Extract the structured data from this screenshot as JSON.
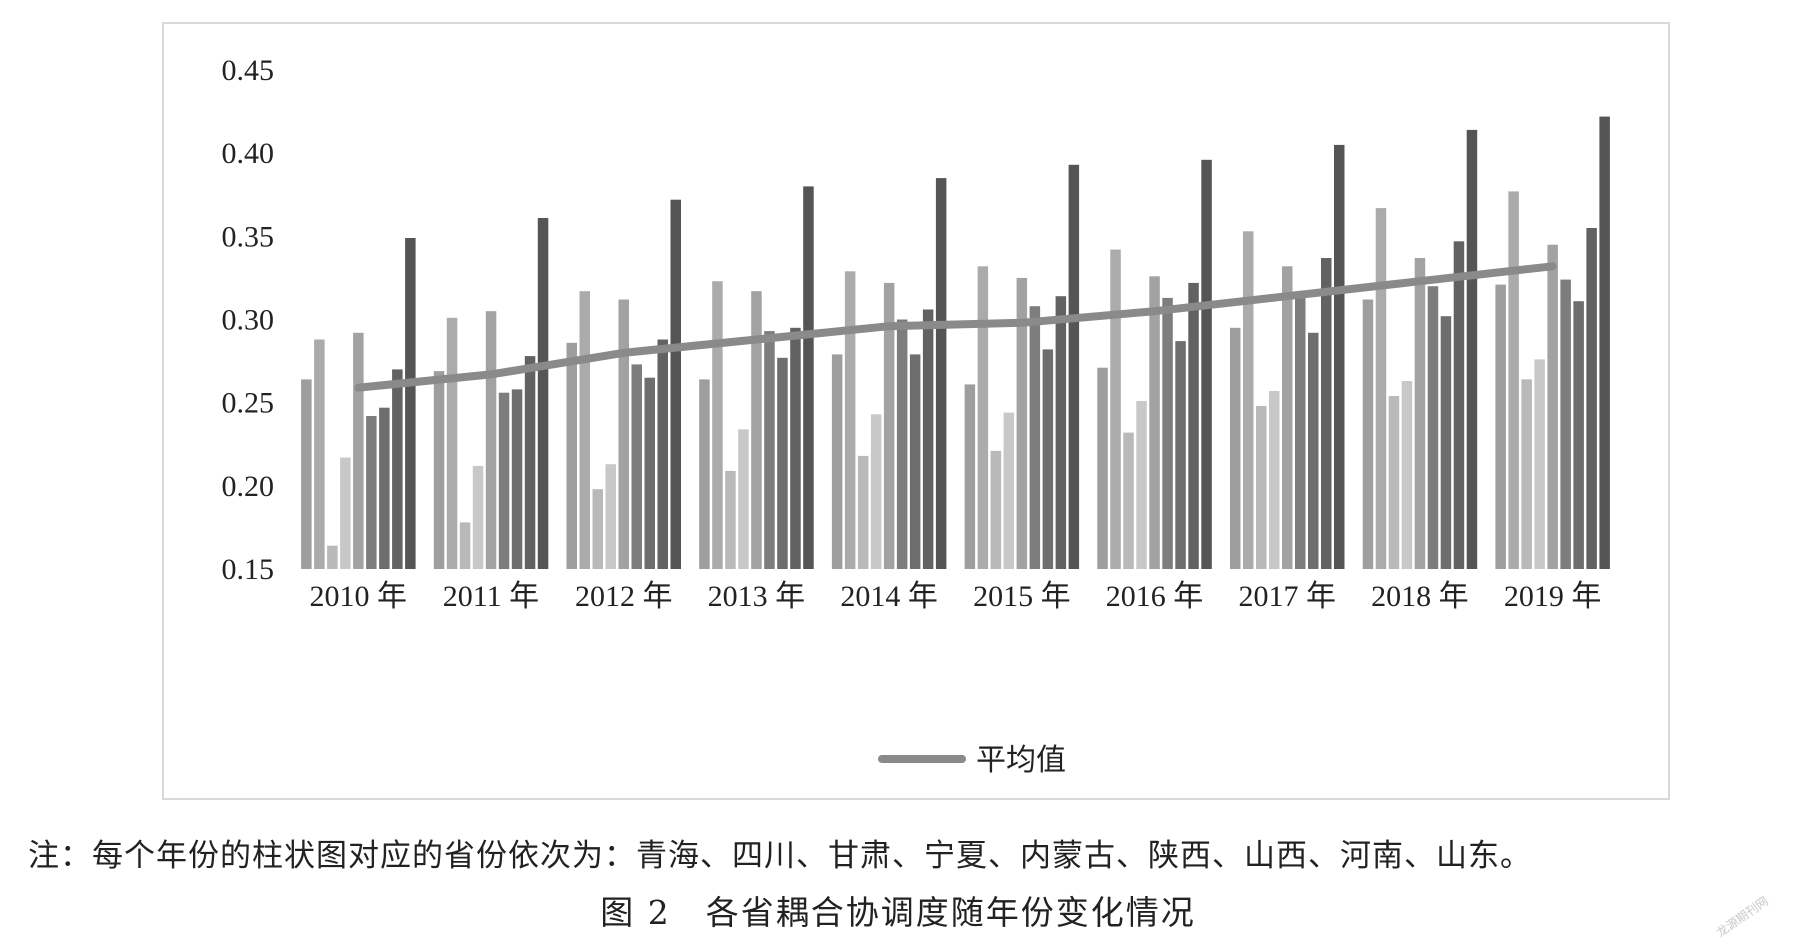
{
  "chart_data": {
    "type": "bar",
    "title": "",
    "categories": [
      "2010 年",
      "2011 年",
      "2012 年",
      "2013 年",
      "2014 年",
      "2015 年",
      "2016 年",
      "2017 年",
      "2018 年",
      "2019 年"
    ],
    "ylim": [
      0.15,
      0.45
    ],
    "yticks": [
      "0.15",
      "0.20",
      "0.25",
      "0.30",
      "0.35",
      "0.40",
      "0.45"
    ],
    "series": [
      {
        "values": [
          0.264,
          0.269,
          0.286,
          0.264,
          0.279,
          0.261,
          0.271,
          0.295,
          0.312,
          0.321
        ],
        "color": "#9e9e9e"
      },
      {
        "values": [
          0.288,
          0.301,
          0.317,
          0.323,
          0.329,
          0.332,
          0.342,
          0.353,
          0.367,
          0.377
        ],
        "color": "#ababab"
      },
      {
        "values": [
          0.164,
          0.178,
          0.198,
          0.209,
          0.218,
          0.221,
          0.232,
          0.248,
          0.254,
          0.264
        ],
        "color": "#b9b9b9"
      },
      {
        "values": [
          0.217,
          0.212,
          0.213,
          0.234,
          0.243,
          0.244,
          0.251,
          0.257,
          0.263,
          0.276
        ],
        "color": "#c8c8c8"
      },
      {
        "values": [
          0.292,
          0.305,
          0.312,
          0.317,
          0.322,
          0.325,
          0.326,
          0.332,
          0.337,
          0.345
        ],
        "color": "#a2a2a2"
      },
      {
        "values": [
          0.242,
          0.256,
          0.273,
          0.293,
          0.3,
          0.308,
          0.313,
          0.316,
          0.32,
          0.324
        ],
        "color": "#7d7d7d"
      },
      {
        "values": [
          0.247,
          0.258,
          0.265,
          0.277,
          0.279,
          0.282,
          0.287,
          0.292,
          0.302,
          0.311
        ],
        "color": "#6e6e6e"
      },
      {
        "values": [
          0.27,
          0.278,
          0.288,
          0.295,
          0.306,
          0.314,
          0.322,
          0.337,
          0.347,
          0.355
        ],
        "color": "#626262"
      },
      {
        "values": [
          0.349,
          0.361,
          0.372,
          0.38,
          0.385,
          0.393,
          0.396,
          0.405,
          0.414,
          0.422
        ],
        "color": "#555555"
      }
    ],
    "average": {
      "name": "平均值",
      "values": [
        0.259,
        0.267,
        0.28,
        0.288,
        0.296,
        0.298,
        0.305,
        0.314,
        0.323,
        0.332
      ],
      "color": "#8a8a8a"
    },
    "legend_position": "bottom-center",
    "grid": false
  },
  "note": "注：每个年份的柱状图对应的省份依次为：青海、四川、甘肃、宁夏、内蒙古、陕西、山西、河南、山东。",
  "caption": "图 2　各省耦合协调度随年份变化情况",
  "watermark": "龙源期刊网"
}
